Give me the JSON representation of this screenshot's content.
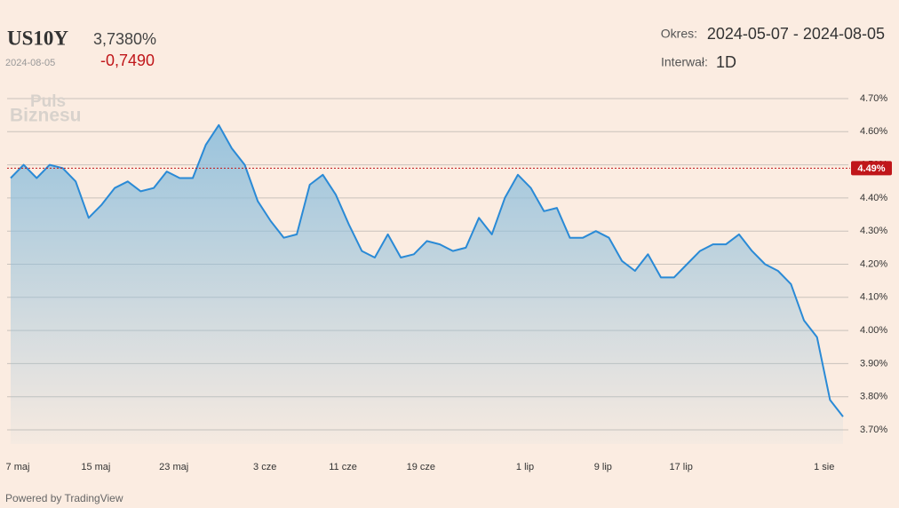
{
  "header": {
    "symbol": "US10Y",
    "price": "3,7380%",
    "date": "2024-08-05",
    "change": "-0,7490",
    "period_label": "Okres:",
    "period": "2024-05-07 - 2024-08-05",
    "interval_label": "Interwał:",
    "interval": "1D",
    "watermark": [
      "Puls",
      "Biznesu"
    ],
    "footer": "Powered by TradingView"
  },
  "chart_data": {
    "type": "line",
    "categories": [
      "7 maj",
      null,
      null,
      null,
      null,
      null,
      "15 maj",
      null,
      null,
      null,
      null,
      null,
      "23 maj",
      null,
      null,
      null,
      null,
      null,
      null,
      "3 cze",
      null,
      null,
      null,
      null,
      null,
      "11 cze",
      null,
      null,
      null,
      null,
      null,
      "19 cze",
      null,
      null,
      null,
      null,
      null,
      null,
      null,
      "1 lip",
      null,
      null,
      null,
      null,
      null,
      "9 lip",
      null,
      null,
      null,
      null,
      null,
      "17 lip",
      null,
      null,
      null,
      null,
      null,
      null,
      null,
      null,
      null,
      null,
      "1 sie",
      null,
      null
    ],
    "series": [
      {
        "name": "US10Y",
        "color": "#2a8ad6",
        "values": [
          4.46,
          4.5,
          4.46,
          4.5,
          4.49,
          4.45,
          4.34,
          4.38,
          4.43,
          4.45,
          4.42,
          4.43,
          4.48,
          4.46,
          4.46,
          4.56,
          4.62,
          4.55,
          4.5,
          4.39,
          4.33,
          4.28,
          4.29,
          4.44,
          4.47,
          4.41,
          4.32,
          4.24,
          4.22,
          4.29,
          4.22,
          4.23,
          4.27,
          4.26,
          4.24,
          4.25,
          4.34,
          4.29,
          4.4,
          4.47,
          4.43,
          4.36,
          4.37,
          4.28,
          4.28,
          4.3,
          4.28,
          4.21,
          4.18,
          4.23,
          4.16,
          4.16,
          4.2,
          4.24,
          4.26,
          4.26,
          4.29,
          4.24,
          4.2,
          4.18,
          4.14,
          4.03,
          3.98,
          3.79,
          3.74
        ]
      }
    ],
    "ylim": [
      3.67,
      4.73
    ],
    "yticks": [
      {
        "value": 3.7,
        "label": "3.70%"
      },
      {
        "value": 3.8,
        "label": "3.80%"
      },
      {
        "value": 3.9,
        "label": "3.90%"
      },
      {
        "value": 4.0,
        "label": "4.00%"
      },
      {
        "value": 4.1,
        "label": "4.10%"
      },
      {
        "value": 4.2,
        "label": "4.20%"
      },
      {
        "value": 4.3,
        "label": "4.30%"
      },
      {
        "value": 4.4,
        "label": "4.40%"
      },
      {
        "value": 4.5,
        "label": "4.50%"
      },
      {
        "value": 4.6,
        "label": "4.60%"
      },
      {
        "value": 4.7,
        "label": "4.70%"
      }
    ],
    "reference_line": {
      "value": 4.49,
      "label": "4.49%",
      "color": "#c0161a"
    },
    "grid": true
  }
}
